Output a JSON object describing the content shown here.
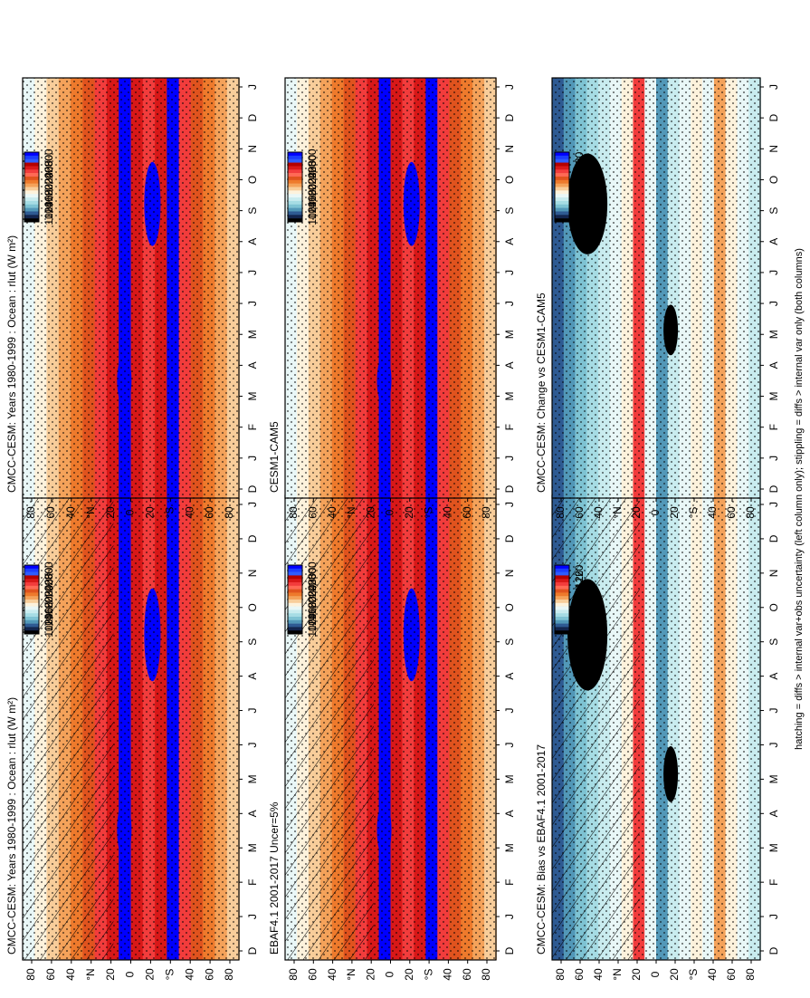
{
  "chart_data": {
    "type": "heatmap",
    "figure_footer": "hatching = diffs > internal var+obs uncertainty (left column only); stippling = diffs > internal var only (both columns)",
    "rlut_colors": [
      "#0000ff",
      "#1a3cff",
      "#2e5cff",
      "#b40000",
      "#d81818",
      "#f23c3c",
      "#ff6a55",
      "#e0531e",
      "#ee7a2c",
      "#f4a25a",
      "#f8cd9a",
      "#fdf2dc",
      "#e9f7f7",
      "#c9ecef",
      "#a6dce4",
      "#7ec3d3",
      "#5298b8",
      "#2e5a92",
      "#13254e",
      "#000000"
    ],
    "diff_colors": [
      "#0000ff",
      "#1a3cff",
      "#2e5cff",
      "#b40000",
      "#d81818",
      "#f23c3c",
      "#ff6a55",
      "#e0531e",
      "#ee7a2c",
      "#f4a25a",
      "#f8cd9a",
      "#fdf2dc",
      "#e9f7f7",
      "#c9ecef",
      "#a6dce4",
      "#7ec3d3",
      "#5298b8",
      "#2e5a92",
      "#13254e",
      "#000000"
    ],
    "panels": [
      {
        "id": "model",
        "title": "CMCC-CESM: Years 1980-1999 : Ocean : rlut (W m²)",
        "months": [
          "D",
          "J",
          "F",
          "M",
          "A",
          "M",
          "J",
          "J",
          "A",
          "S",
          "O",
          "N",
          "D",
          "J"
        ],
        "lat_labels": [
          "80",
          "60",
          "40",
          "°N",
          "20",
          "0",
          "20",
          "°S",
          "40",
          "60",
          "80"
        ],
        "colorbar_labels": [
          "300",
          "280",
          "260",
          "240",
          "220",
          "200",
          "180",
          "160",
          "140",
          "120",
          "100"
        ],
        "hatching": true,
        "stippling": true
      },
      {
        "id": "obs",
        "title": "EBAF4.1 2001-2017 Uncer=5%",
        "months": [
          "D",
          "J",
          "F",
          "M",
          "A",
          "M",
          "J",
          "J",
          "A",
          "S",
          "O",
          "N",
          "D",
          "J"
        ],
        "lat_labels": [
          "80",
          "60",
          "40",
          "°N",
          "20",
          "0",
          "20",
          "°S",
          "40",
          "60",
          "80"
        ],
        "colorbar_labels": [
          "300",
          "280",
          "260",
          "240",
          "220",
          "200",
          "180",
          "160",
          "140",
          "120",
          "100"
        ],
        "hatching": true,
        "stippling": true
      },
      {
        "id": "bias",
        "title": "CMCC-CESM: Bias vs EBAF4.1 2001-2017",
        "months": [
          "D",
          "J",
          "F",
          "M",
          "A",
          "M",
          "J",
          "J",
          "A",
          "S",
          "O",
          "N",
          "D",
          "J"
        ],
        "lat_labels": [
          "80",
          "60",
          "40",
          "°N",
          "20",
          "0",
          "20",
          "°S",
          "40",
          "60",
          "80"
        ],
        "colorbar_labels": [
          "20",
          "16",
          "12",
          "8",
          "4",
          "0",
          "-4",
          "-8",
          "-12",
          "-16",
          "-20"
        ],
        "hatching": true,
        "stippling": true
      },
      {
        "id": "model2",
        "title": "CMCC-CESM: Years 1980-1999 : Ocean : rlut (W m²)",
        "months": [
          "D",
          "J",
          "F",
          "M",
          "A",
          "M",
          "J",
          "J",
          "A",
          "S",
          "O",
          "N",
          "D",
          "J"
        ],
        "lat_labels": [
          "80",
          "60",
          "40",
          "°N",
          "20",
          "0",
          "20",
          "°S",
          "40",
          "60",
          "80"
        ],
        "colorbar_labels": [
          "300",
          "280",
          "260",
          "240",
          "220",
          "200",
          "180",
          "160",
          "140",
          "120",
          "100"
        ],
        "hatching": false,
        "stippling": true
      },
      {
        "id": "ref",
        "title": "CESM1-CAM5",
        "months": [
          "D",
          "J",
          "F",
          "M",
          "A",
          "M",
          "J",
          "J",
          "A",
          "S",
          "O",
          "N",
          "D",
          "J"
        ],
        "lat_labels": [
          "80",
          "60",
          "40",
          "°N",
          "20",
          "0",
          "20",
          "°S",
          "40",
          "60",
          "80"
        ],
        "colorbar_labels": [
          "300",
          "280",
          "260",
          "240",
          "220",
          "200",
          "180",
          "160",
          "140",
          "120",
          "100"
        ],
        "hatching": false,
        "stippling": true
      },
      {
        "id": "change",
        "title": "CMCC-CESM: Change vs CESM1-CAM5",
        "months": [
          "D",
          "J",
          "F",
          "M",
          "A",
          "M",
          "J",
          "J",
          "A",
          "S",
          "O",
          "N",
          "D",
          "J"
        ],
        "lat_labels": [
          "80",
          "60",
          "40",
          "°N",
          "20",
          "0",
          "20",
          "°S",
          "40",
          "60",
          "80"
        ],
        "colorbar_labels": [
          "20",
          "16",
          "12",
          "8",
          "4",
          "0",
          "-4",
          "-8",
          "-12",
          "-16",
          "-20"
        ],
        "hatching": false,
        "stippling": true
      }
    ]
  }
}
